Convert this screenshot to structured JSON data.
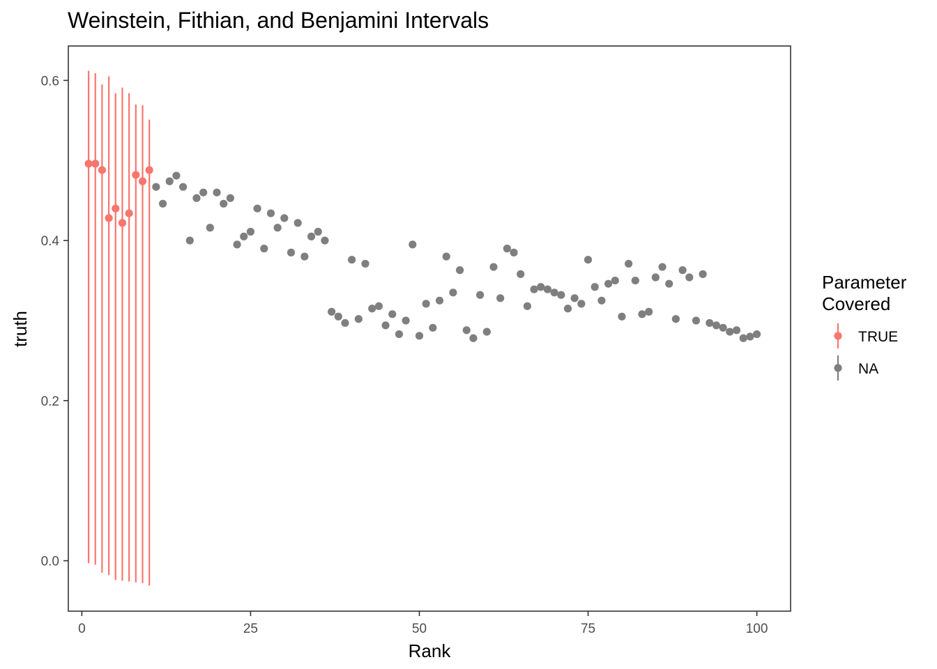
{
  "chart_data": {
    "type": "scatter",
    "title": "Weinstein, Fithian, and Benjamini Intervals",
    "xlabel": "Rank",
    "ylabel": "truth",
    "xlim": [
      -2,
      105
    ],
    "ylim": [
      -0.063,
      0.643
    ],
    "x_ticks": [
      0,
      25,
      50,
      75,
      100
    ],
    "y_ticks": [
      0.0,
      0.2,
      0.4,
      0.6
    ],
    "x_tick_labels": [
      "0",
      "25",
      "50",
      "75",
      "100"
    ],
    "y_tick_labels": [
      "0.0",
      "0.2",
      "0.4",
      "0.6"
    ],
    "grid": false,
    "legend": {
      "title_lines": [
        "Parameter",
        "Covered"
      ],
      "placement": "right",
      "entries": [
        {
          "label": "TRUE",
          "color": "#F8766D"
        },
        {
          "label": "NA",
          "color": "#7F7F7F"
        }
      ]
    },
    "series": [
      {
        "name": "TRUE",
        "color": "#F8766D",
        "x": [
          1,
          2,
          3,
          4,
          5,
          6,
          7,
          8,
          9,
          10
        ],
        "y": [
          0.496,
          0.496,
          0.488,
          0.428,
          0.44,
          0.422,
          0.434,
          0.482,
          0.474,
          0.488
        ],
        "lower": [
          -0.003,
          -0.005,
          -0.015,
          -0.018,
          -0.024,
          -0.025,
          -0.026,
          -0.027,
          -0.028,
          -0.031
        ],
        "upper": [
          0.612,
          0.609,
          0.595,
          0.605,
          0.584,
          0.591,
          0.584,
          0.57,
          0.569,
          0.551
        ]
      },
      {
        "name": "NA",
        "color": "#7F7F7F",
        "x": [
          11,
          12,
          13,
          14,
          15,
          16,
          17,
          18,
          19,
          20,
          21,
          22,
          23,
          24,
          25,
          26,
          27,
          28,
          29,
          30,
          31,
          32,
          33,
          34,
          35,
          36,
          37,
          38,
          39,
          40,
          41,
          42,
          43,
          44,
          45,
          46,
          47,
          48,
          49,
          50,
          51,
          52,
          53,
          54,
          55,
          56,
          57,
          58,
          59,
          60,
          61,
          62,
          63,
          64,
          65,
          66,
          67,
          68,
          69,
          70,
          71,
          72,
          73,
          74,
          75,
          76,
          77,
          78,
          79,
          80,
          81,
          82,
          83,
          84,
          85,
          86,
          87,
          88,
          89,
          90,
          91,
          92,
          93,
          94,
          95,
          96,
          97,
          98,
          99,
          100
        ],
        "y": [
          0.467,
          0.446,
          0.474,
          0.481,
          0.467,
          0.4,
          0.453,
          0.46,
          0.416,
          0.46,
          0.446,
          0.453,
          0.395,
          0.405,
          0.411,
          0.44,
          0.39,
          0.434,
          0.416,
          0.428,
          0.385,
          0.422,
          0.38,
          0.405,
          0.411,
          0.4,
          0.311,
          0.305,
          0.297,
          0.376,
          0.302,
          0.371,
          0.315,
          0.318,
          0.294,
          0.308,
          0.283,
          0.3,
          0.395,
          0.281,
          0.321,
          0.291,
          0.325,
          0.38,
          0.335,
          0.363,
          0.288,
          0.278,
          0.332,
          0.286,
          0.367,
          0.328,
          0.39,
          0.385,
          0.358,
          0.318,
          0.339,
          0.342,
          0.339,
          0.335,
          0.332,
          0.315,
          0.328,
          0.321,
          0.376,
          0.342,
          0.325,
          0.346,
          0.35,
          0.305,
          0.371,
          0.35,
          0.308,
          0.311,
          0.354,
          0.367,
          0.346,
          0.302,
          0.363,
          0.354,
          0.3,
          0.358,
          0.297,
          0.294,
          0.291,
          0.286,
          0.288,
          0.278,
          0.28,
          0.283
        ]
      }
    ]
  }
}
